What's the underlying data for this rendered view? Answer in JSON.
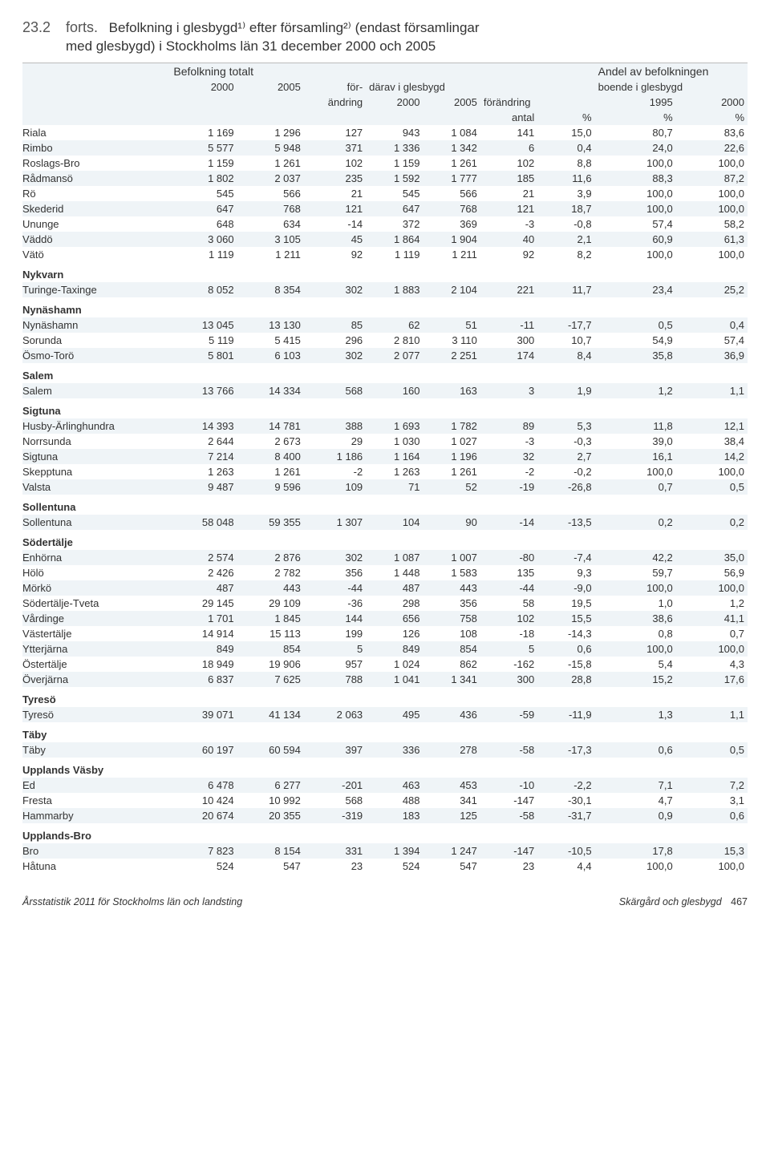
{
  "title": {
    "num": "23.2",
    "label": "forts.",
    "text_line1": "Befolkning i glesbygd¹⁾ efter församling²⁾ (endast församlingar",
    "text_line2": "med glesbygd) i Stockholms län 31 december 2000 och 2005"
  },
  "headers": {
    "h_totalt": "Befolkning totalt",
    "h_andel": "Andel av befolkningen",
    "h_2000a": "2000",
    "h_2005a": "2005",
    "h_for": "för-",
    "h_darav": "därav i glesbygd",
    "h_boende": "boende i glesbygd",
    "h_andring": "ändring",
    "h_2000b": "2000",
    "h_2005b": "2005",
    "h_forandring": "förändring",
    "h_1995": "1995",
    "h_2000c": "2000",
    "h_antal": "antal",
    "h_pct": "%",
    "h_pct2": "%",
    "h_pct3": "%"
  },
  "groups": [
    {
      "name": "",
      "rows": [
        {
          "n": "Riala",
          "c": [
            "1 169",
            "1 296",
            "127",
            "943",
            "1 084",
            "141",
            "15,0",
            "80,7",
            "83,6"
          ]
        },
        {
          "n": "Rimbo",
          "c": [
            "5 577",
            "5 948",
            "371",
            "1 336",
            "1 342",
            "6",
            "0,4",
            "24,0",
            "22,6"
          ]
        },
        {
          "n": "Roslags-Bro",
          "c": [
            "1 159",
            "1 261",
            "102",
            "1 159",
            "1 261",
            "102",
            "8,8",
            "100,0",
            "100,0"
          ]
        },
        {
          "n": "Rådmansö",
          "c": [
            "1 802",
            "2 037",
            "235",
            "1 592",
            "1 777",
            "185",
            "11,6",
            "88,3",
            "87,2"
          ]
        },
        {
          "n": "Rö",
          "c": [
            "545",
            "566",
            "21",
            "545",
            "566",
            "21",
            "3,9",
            "100,0",
            "100,0"
          ]
        },
        {
          "n": "Skederid",
          "c": [
            "647",
            "768",
            "121",
            "647",
            "768",
            "121",
            "18,7",
            "100,0",
            "100,0"
          ]
        },
        {
          "n": "Ununge",
          "c": [
            "648",
            "634",
            "-14",
            "372",
            "369",
            "-3",
            "-0,8",
            "57,4",
            "58,2"
          ]
        },
        {
          "n": "Väddö",
          "c": [
            "3 060",
            "3 105",
            "45",
            "1 864",
            "1 904",
            "40",
            "2,1",
            "60,9",
            "61,3"
          ]
        },
        {
          "n": "Vätö",
          "c": [
            "1 119",
            "1 211",
            "92",
            "1 119",
            "1 211",
            "92",
            "8,2",
            "100,0",
            "100,0"
          ]
        }
      ]
    },
    {
      "name": "Nykvarn",
      "rows": [
        {
          "n": "Turinge-Taxinge",
          "c": [
            "8 052",
            "8 354",
            "302",
            "1 883",
            "2 104",
            "221",
            "11,7",
            "23,4",
            "25,2"
          ]
        }
      ]
    },
    {
      "name": "Nynäshamn",
      "rows": [
        {
          "n": "Nynäshamn",
          "c": [
            "13 045",
            "13 130",
            "85",
            "62",
            "51",
            "-11",
            "-17,7",
            "0,5",
            "0,4"
          ]
        },
        {
          "n": "Sorunda",
          "c": [
            "5 119",
            "5 415",
            "296",
            "2 810",
            "3 110",
            "300",
            "10,7",
            "54,9",
            "57,4"
          ]
        },
        {
          "n": "Ösmo-Torö",
          "c": [
            "5 801",
            "6 103",
            "302",
            "2 077",
            "2 251",
            "174",
            "8,4",
            "35,8",
            "36,9"
          ]
        }
      ]
    },
    {
      "name": "Salem",
      "rows": [
        {
          "n": "Salem",
          "c": [
            "13 766",
            "14 334",
            "568",
            "160",
            "163",
            "3",
            "1,9",
            "1,2",
            "1,1"
          ]
        }
      ]
    },
    {
      "name": "Sigtuna",
      "rows": [
        {
          "n": "Husby-Ärlinghundra",
          "c": [
            "14 393",
            "14 781",
            "388",
            "1 693",
            "1 782",
            "89",
            "5,3",
            "11,8",
            "12,1"
          ]
        },
        {
          "n": "Norrsunda",
          "c": [
            "2 644",
            "2 673",
            "29",
            "1 030",
            "1 027",
            "-3",
            "-0,3",
            "39,0",
            "38,4"
          ]
        },
        {
          "n": "Sigtuna",
          "c": [
            "7 214",
            "8 400",
            "1 186",
            "1 164",
            "1 196",
            "32",
            "2,7",
            "16,1",
            "14,2"
          ]
        },
        {
          "n": "Skepptuna",
          "c": [
            "1 263",
            "1 261",
            "-2",
            "1 263",
            "1 261",
            "-2",
            "-0,2",
            "100,0",
            "100,0"
          ]
        },
        {
          "n": "Valsta",
          "c": [
            "9 487",
            "9 596",
            "109",
            "71",
            "52",
            "-19",
            "-26,8",
            "0,7",
            "0,5"
          ]
        }
      ]
    },
    {
      "name": "Sollentuna",
      "rows": [
        {
          "n": "Sollentuna",
          "c": [
            "58 048",
            "59 355",
            "1 307",
            "104",
            "90",
            "-14",
            "-13,5",
            "0,2",
            "0,2"
          ]
        }
      ]
    },
    {
      "name": "Södertälje",
      "rows": [
        {
          "n": "Enhörna",
          "c": [
            "2 574",
            "2 876",
            "302",
            "1 087",
            "1 007",
            "-80",
            "-7,4",
            "42,2",
            "35,0"
          ]
        },
        {
          "n": "Hölö",
          "c": [
            "2 426",
            "2 782",
            "356",
            "1 448",
            "1 583",
            "135",
            "9,3",
            "59,7",
            "56,9"
          ]
        },
        {
          "n": "Mörkö",
          "c": [
            "487",
            "443",
            "-44",
            "487",
            "443",
            "-44",
            "-9,0",
            "100,0",
            "100,0"
          ]
        },
        {
          "n": "Södertälje-Tveta",
          "c": [
            "29 145",
            "29 109",
            "-36",
            "298",
            "356",
            "58",
            "19,5",
            "1,0",
            "1,2"
          ]
        },
        {
          "n": "Vårdinge",
          "c": [
            "1 701",
            "1 845",
            "144",
            "656",
            "758",
            "102",
            "15,5",
            "38,6",
            "41,1"
          ]
        },
        {
          "n": "Västertälje",
          "c": [
            "14 914",
            "15 113",
            "199",
            "126",
            "108",
            "-18",
            "-14,3",
            "0,8",
            "0,7"
          ]
        },
        {
          "n": "Ytterjärna",
          "c": [
            "849",
            "854",
            "5",
            "849",
            "854",
            "5",
            "0,6",
            "100,0",
            "100,0"
          ]
        },
        {
          "n": "Östertälje",
          "c": [
            "18 949",
            "19 906",
            "957",
            "1 024",
            "862",
            "-162",
            "-15,8",
            "5,4",
            "4,3"
          ]
        },
        {
          "n": "Överjärna",
          "c": [
            "6 837",
            "7 625",
            "788",
            "1 041",
            "1 341",
            "300",
            "28,8",
            "15,2",
            "17,6"
          ]
        }
      ]
    },
    {
      "name": "Tyresö",
      "rows": [
        {
          "n": "Tyresö",
          "c": [
            "39 071",
            "41 134",
            "2 063",
            "495",
            "436",
            "-59",
            "-11,9",
            "1,3",
            "1,1"
          ]
        }
      ]
    },
    {
      "name": "Täby",
      "rows": [
        {
          "n": "Täby",
          "c": [
            "60 197",
            "60 594",
            "397",
            "336",
            "278",
            "-58",
            "-17,3",
            "0,6",
            "0,5"
          ]
        }
      ]
    },
    {
      "name": "Upplands Väsby",
      "rows": [
        {
          "n": "Ed",
          "c": [
            "6 478",
            "6 277",
            "-201",
            "463",
            "453",
            "-10",
            "-2,2",
            "7,1",
            "7,2"
          ]
        },
        {
          "n": "Fresta",
          "c": [
            "10 424",
            "10 992",
            "568",
            "488",
            "341",
            "-147",
            "-30,1",
            "4,7",
            "3,1"
          ]
        },
        {
          "n": "Hammarby",
          "c": [
            "20 674",
            "20 355",
            "-319",
            "183",
            "125",
            "-58",
            "-31,7",
            "0,9",
            "0,6"
          ]
        }
      ]
    },
    {
      "name": "Upplands-Bro",
      "rows": [
        {
          "n": "Bro",
          "c": [
            "7 823",
            "8 154",
            "331",
            "1 394",
            "1 247",
            "-147",
            "-10,5",
            "17,8",
            "15,3"
          ]
        },
        {
          "n": "Håtuna",
          "c": [
            "524",
            "547",
            "23",
            "524",
            "547",
            "23",
            "4,4",
            "100,0",
            "100,0"
          ]
        }
      ]
    }
  ],
  "footer": {
    "left": "Årsstatistik 2011 för Stockholms län och landsting",
    "right": "Skärgård och glesbygd",
    "page": "467"
  },
  "style": {
    "band_color": "#eff4f7",
    "text_color": "#333333",
    "header_color": "#555555"
  }
}
